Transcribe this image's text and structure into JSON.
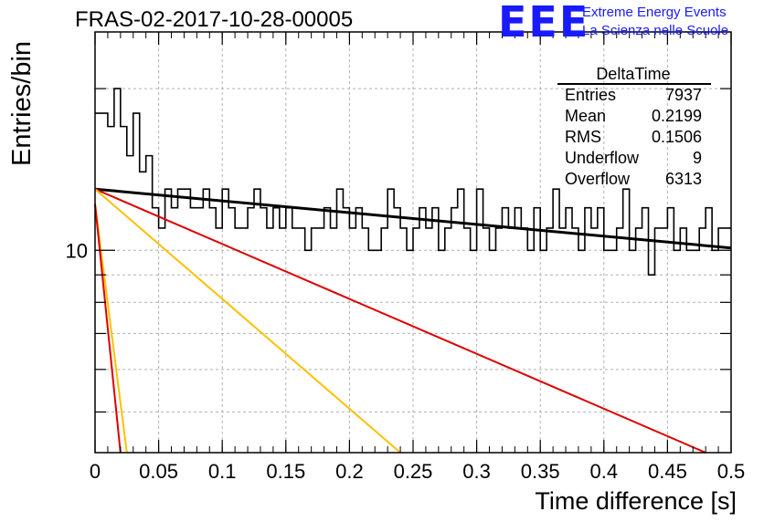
{
  "title": "FRAS-02-2017-10-28-00005",
  "logo": {
    "text": "EEE",
    "line1": "Extreme Energy Events",
    "line2": "La Scienza nelle Scuole"
  },
  "colors": {
    "histogram": "#000000",
    "fit_black": "#000000",
    "fit_red": "#dd0000",
    "fit_orange": "#ffc000",
    "grid": "#b0b0b0",
    "logo": "#1a1aff"
  },
  "chart_data": {
    "type": "line",
    "title": "FRAS-02-2017-10-28-00005",
    "xlabel": "Time difference [s]",
    "ylabel": "Entries/bin",
    "xlim": [
      0,
      0.5
    ],
    "ylim": [
      4.2,
      25.5
    ],
    "yscale": "log",
    "grid": true,
    "x_ticks": [
      "0",
      "0.05",
      "0.1",
      "0.15",
      "0.2",
      "0.25",
      "0.3",
      "0.35",
      "0.4",
      "0.45",
      "0.5"
    ],
    "y_tick_labels": [
      {
        "value": 10,
        "label": "10"
      }
    ],
    "histogram": {
      "bin_width": 0.005,
      "values": [
        18,
        18,
        17,
        20,
        17,
        15,
        18,
        14,
        15,
        12,
        11,
        13,
        12,
        13,
        13,
        12,
        12,
        13,
        12,
        11,
        13,
        12,
        11,
        11,
        12,
        13,
        12,
        11,
        12,
        11,
        12,
        11,
        11,
        10,
        11,
        11,
        12,
        11,
        13,
        12,
        11,
        12,
        11,
        10,
        10,
        11,
        13,
        12,
        11,
        10,
        11,
        12,
        11,
        12,
        10,
        11,
        12,
        13,
        11,
        10,
        13,
        11,
        10,
        11,
        12,
        11,
        12,
        11,
        10,
        12,
        10,
        11,
        13,
        11,
        12,
        11,
        10,
        12,
        11,
        12,
        10,
        10,
        11,
        13,
        10,
        11,
        12,
        9,
        11,
        11,
        12,
        10,
        11,
        10,
        10,
        11,
        12,
        10,
        11,
        11
      ],
      "series_name": "DeltaTime"
    },
    "series": [
      {
        "kind": "exp_fit",
        "color": "black",
        "x": [
          0,
          0.5
        ],
        "y": [
          13.0,
          10.1
        ]
      },
      {
        "kind": "exp_fit",
        "color": "red",
        "x": [
          0,
          0.48
        ],
        "y": [
          13.0,
          4.2
        ]
      },
      {
        "kind": "exp_fit",
        "color": "orange",
        "x": [
          0,
          0.24
        ],
        "y": [
          13.0,
          4.2
        ]
      },
      {
        "kind": "exp_fit",
        "color": "orange",
        "x": [
          0,
          0.025
        ],
        "y": [
          12.2,
          4.2
        ]
      },
      {
        "kind": "exp_fit",
        "color": "red",
        "x": [
          0,
          0.02
        ],
        "y": [
          12.2,
          4.2
        ]
      }
    ]
  },
  "stats": {
    "title": "DeltaTime",
    "rows": [
      {
        "label": "Entries",
        "value": "7937"
      },
      {
        "label": "Mean",
        "value": "0.2199"
      },
      {
        "label": "RMS",
        "value": "0.1506"
      },
      {
        "label": "Underflow",
        "value": "9"
      },
      {
        "label": "Overflow",
        "value": "6313"
      }
    ]
  }
}
